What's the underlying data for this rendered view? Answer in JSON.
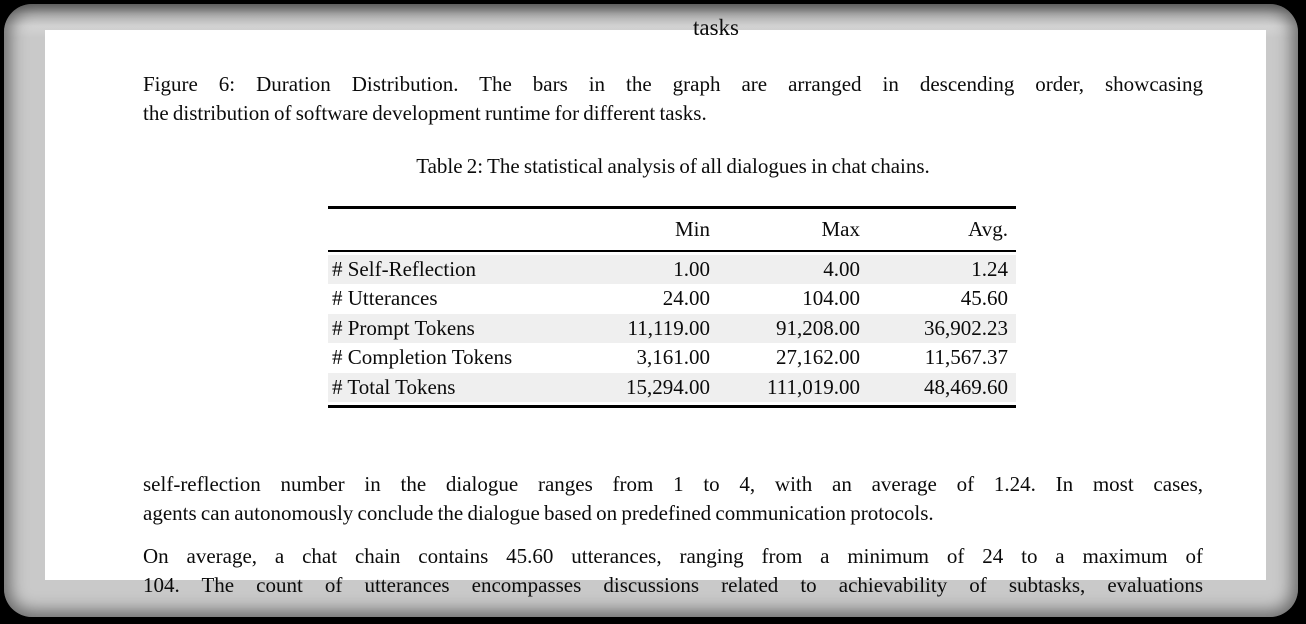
{
  "colors": {
    "canvas-bg": "#000000",
    "window-gray": "#c9c9c9",
    "window-edge-dark": "#8f8f8f",
    "page-bg": "#ffffff",
    "text-color": "#0b0b0b",
    "row-stripe": "#efefef",
    "rule-color": "#000000"
  },
  "figure_region": {
    "axis_label_fragment": "tasks"
  },
  "figure_caption": {
    "line1": "Figure 6: Duration Distribution. The bars in the graph are arranged in descending order, showcasing",
    "line2": "the distribution of software development runtime for different tasks."
  },
  "stats_table": {
    "caption": "Table 2: The statistical analysis of all dialogues in chat chains.",
    "columns": {
      "min": "Min",
      "max": "Max",
      "avg": "Avg."
    },
    "rows": [
      {
        "label": "# Self-Reflection",
        "min": "1.00",
        "max": "4.00",
        "avg": "1.24"
      },
      {
        "label": "# Utterances",
        "min": "24.00",
        "max": "104.00",
        "avg": "45.60"
      },
      {
        "label": "# Prompt Tokens",
        "min": "11,119.00",
        "max": "91,208.00",
        "avg": "36,902.23"
      },
      {
        "label": "# Completion Tokens",
        "min": "3,161.00",
        "max": "27,162.00",
        "avg": "11,567.37"
      },
      {
        "label": "# Total Tokens",
        "min": "15,294.00",
        "max": "111,019.00",
        "avg": "48,469.60"
      }
    ]
  },
  "body_text": {
    "p1_line1": "self-reflection number in the dialogue ranges from 1 to 4, with an average of 1.24. In most cases,",
    "p1_line2": "agents can autonomously conclude the dialogue based on predefined communication protocols.",
    "p2_line1": "On average, a chat chain contains 45.60 utterances, ranging from a minimum of 24 to a maximum of",
    "p2_line2": "104. The count of utterances encompasses discussions related to achievability of subtasks, evaluations"
  }
}
